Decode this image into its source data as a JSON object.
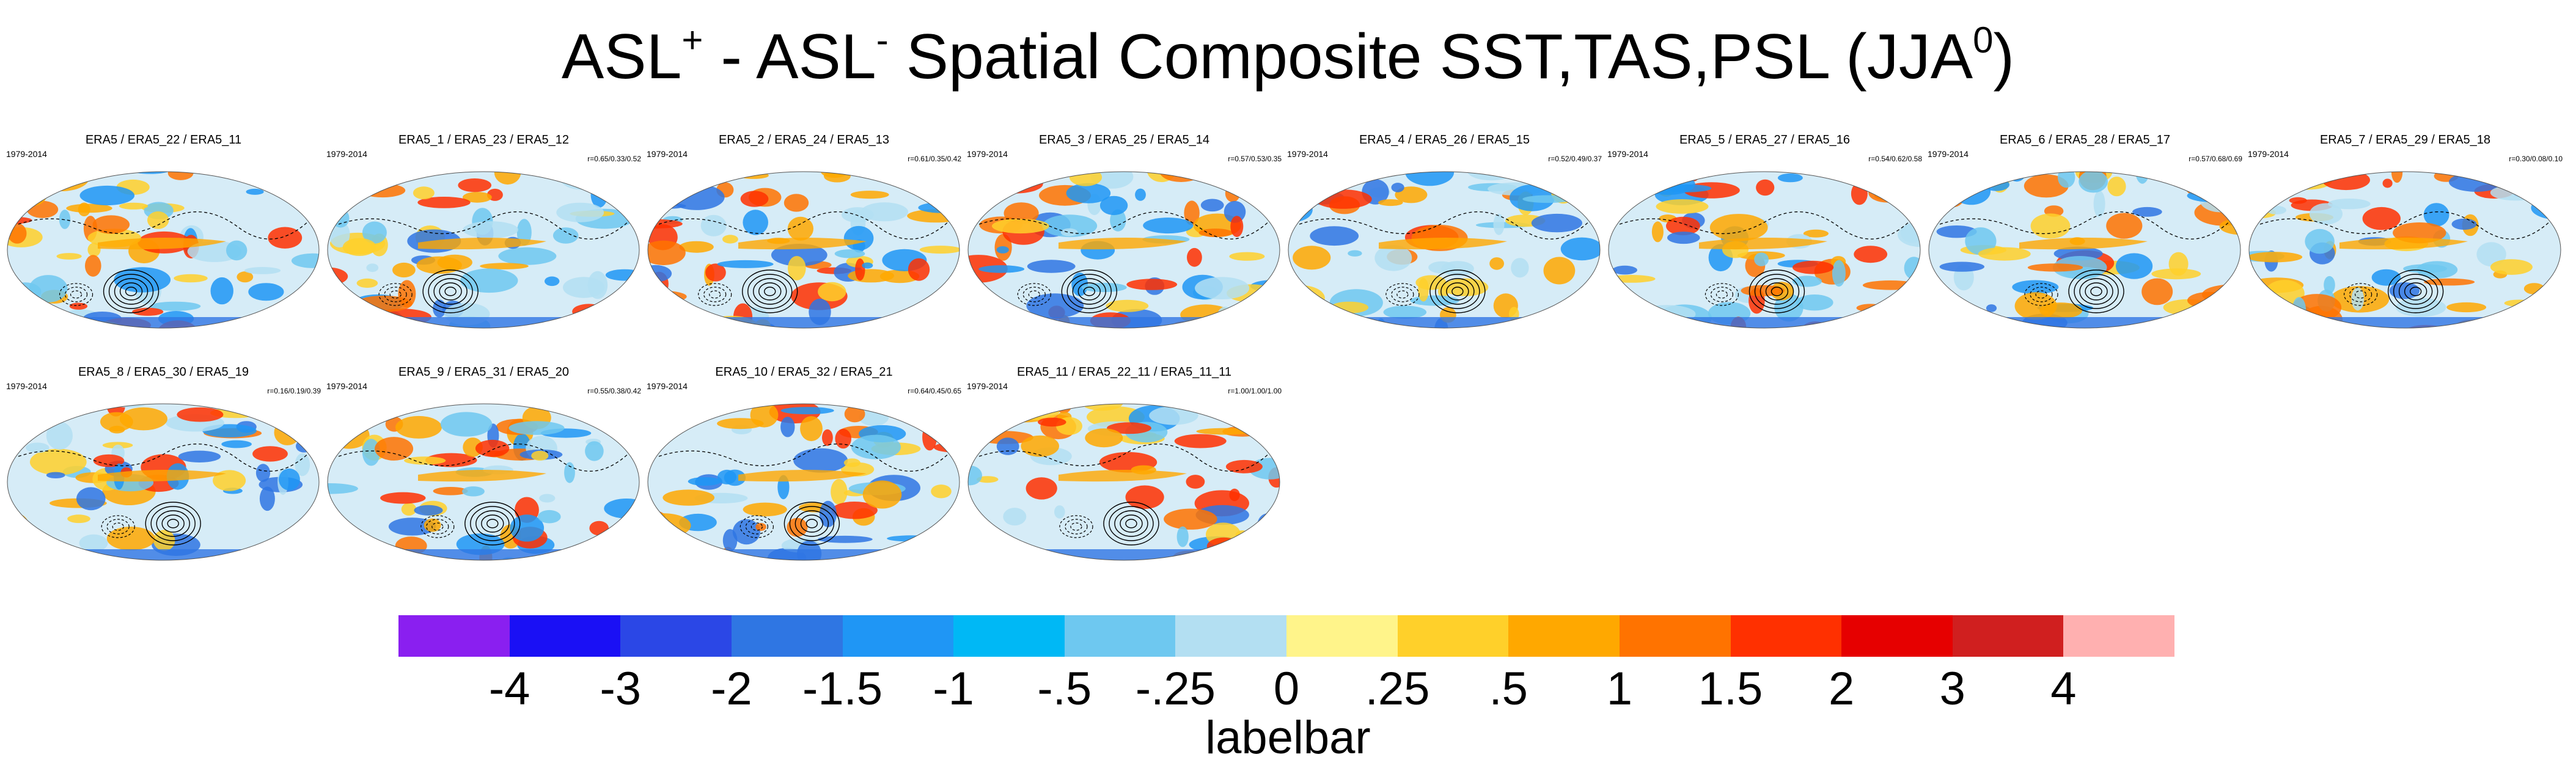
{
  "title": {
    "part1": "ASL",
    "sup1": "+",
    "part2": " - ASL",
    "sup2": "-",
    "part3": " Spatial Composite SST,TAS,PSL (JJA",
    "sup3": "0",
    "part4": ")"
  },
  "panels": [
    {
      "label": "ERA5 / ERA5_22 / ERA5_11",
      "period": "1979-2014",
      "stats": ""
    },
    {
      "label": "ERA5_1 / ERA5_23 / ERA5_12",
      "period": "1979-2014",
      "stats": "r=0.65/0.33/0.52"
    },
    {
      "label": "ERA5_2 / ERA5_24 / ERA5_13",
      "period": "1979-2014",
      "stats": "r=0.61/0.35/0.42"
    },
    {
      "label": "ERA5_3 / ERA5_25 / ERA5_14",
      "period": "1979-2014",
      "stats": "r=0.57/0.53/0.35"
    },
    {
      "label": "ERA5_4 / ERA5_26 / ERA5_15",
      "period": "1979-2014",
      "stats": "r=0.52/0.49/0.37"
    },
    {
      "label": "ERA5_5 / ERA5_27 / ERA5_16",
      "period": "1979-2014",
      "stats": "r=0.54/0.62/0.58"
    },
    {
      "label": "ERA5_6 / ERA5_28 / ERA5_17",
      "period": "1979-2014",
      "stats": "r=0.57/0.68/0.69"
    },
    {
      "label": "ERA5_7 / ERA5_29 / ERA5_18",
      "period": "1979-2014",
      "stats": "r=0.30/0.08/0.10"
    },
    {
      "label": "ERA5_8 / ERA5_30 / ERA5_19",
      "period": "1979-2014",
      "stats": "r=0.16/0.19/0.39"
    },
    {
      "label": "ERA5_9 / ERA5_31 / ERA5_20",
      "period": "1979-2014",
      "stats": "r=0.55/0.38/0.42"
    },
    {
      "label": "ERA5_10 / ERA5_32 / ERA5_21",
      "period": "1979-2014",
      "stats": "r=0.64/0.45/0.65"
    },
    {
      "label": "ERA5_11 / ERA5_22_11 / ERA5_11_11",
      "period": "1979-2014",
      "stats": "r=1.00/1.00/1.00"
    }
  ],
  "labelbar": {
    "title": "labelbar",
    "ticks": [
      "-4",
      "-3",
      "-2",
      "-1.5",
      "-1",
      "-.5",
      "-.25",
      "0",
      ".25",
      ".5",
      "1",
      "1.5",
      "2",
      "3",
      "4"
    ],
    "colors": [
      "#8a1ff0",
      "#1a10f5",
      "#2b47e6",
      "#2f76e3",
      "#1f96f5",
      "#00b8f5",
      "#6ec8f0",
      "#b3dff2",
      "#fff48a",
      "#ffd02a",
      "#ffa800",
      "#ff7300",
      "#ff3000",
      "#e60000",
      "#d01f1f",
      "#ffb0b0"
    ]
  }
}
